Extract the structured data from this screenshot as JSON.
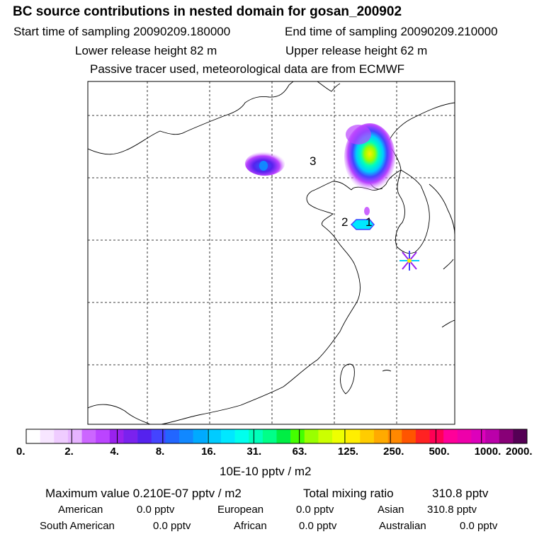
{
  "header": {
    "title": "BC  source contributions in nested domain for gosan_200902",
    "start_label": "Start time of sampling 20090209.180000",
    "end_label": "End time of sampling 20090209.210000",
    "lower_label": "Lower release height   82 m",
    "upper_label": "Upper release height   62 m",
    "tracer_label": "Passive tracer used, meteorological data are from ECMWF"
  },
  "map": {
    "labels": [
      "3",
      "2",
      "1"
    ],
    "receptor_marker": "receptor-star"
  },
  "colorbar": {
    "ticks": [
      "0.",
      "2.",
      "4.",
      "8.",
      "16.",
      "31.",
      "63.",
      "125.",
      "250.",
      "500.",
      "1000.",
      "2000."
    ],
    "unit": "10E-10 pptv / m2",
    "colors": [
      "#ffffff",
      "#f7e6ff",
      "#efccff",
      "#e6b3ff",
      "#cc66ff",
      "#bb44ff",
      "#9922ee",
      "#7a22ee",
      "#5522ee",
      "#4444ff",
      "#2266ff",
      "#1188ff",
      "#00aaff",
      "#00ccff",
      "#00e8ff",
      "#00ffee",
      "#00ffbb",
      "#00ff88",
      "#00ee44",
      "#44ff00",
      "#99ff00",
      "#ccff00",
      "#eeff00",
      "#ffee00",
      "#ffcc00",
      "#ffaa00",
      "#ff8800",
      "#ff5500",
      "#ff2222",
      "#ff0055",
      "#ff0099",
      "#ee00aa",
      "#dd00bb",
      "#bb00aa",
      "#880077",
      "#550055"
    ]
  },
  "stats": {
    "max_label": "Maximum value  0.210E-07 pptv / m2",
    "total_label": "Total mixing ratio",
    "total_value": "310.8 pptv",
    "regions": [
      {
        "name": "American",
        "value": "0.0 pptv"
      },
      {
        "name": "European",
        "value": "0.0 pptv"
      },
      {
        "name": "Asian",
        "value": "310.8 pptv"
      },
      {
        "name": "South American",
        "value": "0.0 pptv"
      },
      {
        "name": "African",
        "value": "0.0 pptv"
      },
      {
        "name": "Australian",
        "value": "0.0 pptv"
      }
    ]
  }
}
